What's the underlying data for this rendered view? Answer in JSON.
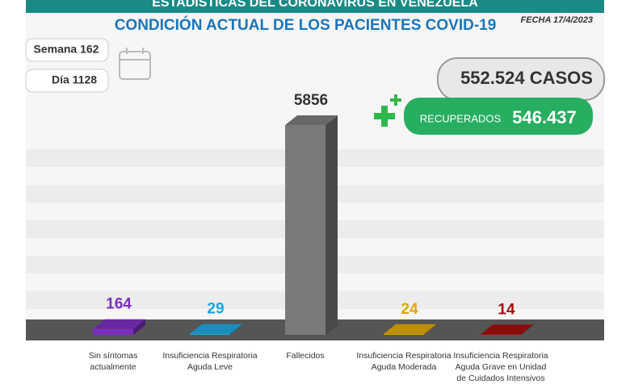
{
  "header": {
    "banner": "ESTADÍSTICAS DEL CORONAVIRUS EN VENEZUELA",
    "date": "FECHA 17/4/2023",
    "week": "Semana 162",
    "day": "Día 1128",
    "cases": "552.524 CASOS",
    "recovered_label": "RECUPERADOS",
    "recovered_value": "546.437"
  },
  "chart_data": {
    "type": "bar3d",
    "title": "CONDICIÓN ACTUAL DE LOS PACIENTES COVID-19",
    "categories": [
      "Sin síntomas actualmente",
      "Insuficiencia Respiratoria Aguda Leve",
      "Fallecidos",
      "Insuficiencia Respiratoria Aguda Moderada",
      "Insuficiencia Respiratoria Aguda Grave en Unidad de Cuidados Intensivos"
    ],
    "values": [
      164,
      29,
      5856,
      24,
      14
    ],
    "colors": [
      "#7b2fbf",
      "#1ea6dc",
      "#7a7a7a",
      "#e0a800",
      "#a30d0d"
    ]
  }
}
